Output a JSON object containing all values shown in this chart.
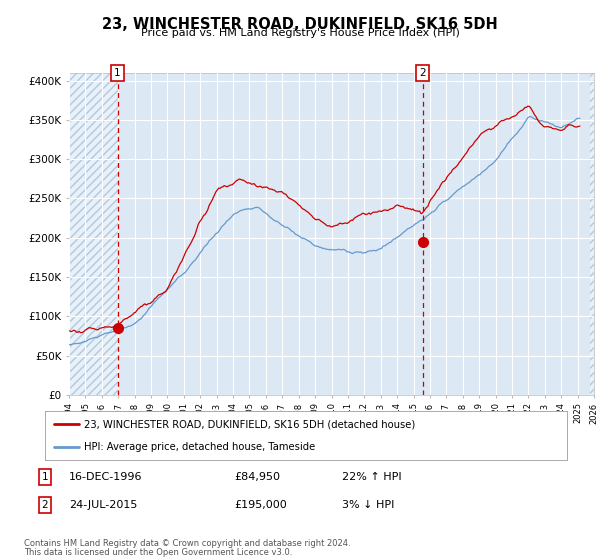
{
  "title": "23, WINCHESTER ROAD, DUKINFIELD, SK16 5DH",
  "subtitle": "Price paid vs. HM Land Registry's House Price Index (HPI)",
  "red_label": "23, WINCHESTER ROAD, DUKINFIELD, SK16 5DH (detached house)",
  "blue_label": "HPI: Average price, detached house, Tameside",
  "transaction1_date": "16-DEC-1996",
  "transaction1_price": 84950,
  "transaction1_hpi": "22% ↑ HPI",
  "transaction2_date": "24-JUL-2015",
  "transaction2_price": 195000,
  "transaction2_hpi": "3% ↓ HPI",
  "footer": "Contains HM Land Registry data © Crown copyright and database right 2024.\nThis data is licensed under the Open Government Licence v3.0.",
  "ylim": [
    0,
    410000
  ],
  "yticks": [
    0,
    50000,
    100000,
    150000,
    200000,
    250000,
    300000,
    350000,
    400000
  ],
  "plot_bg_color": "#dce9f5",
  "hatch_color": "#b0c8e0",
  "red_line_color": "#cc0000",
  "blue_line_color": "#6699cc",
  "marker_color": "#cc0000",
  "dashed_color": "#cc0000",
  "box_color": "#cc0000",
  "grid_color": "#ffffff",
  "x_start_year": 1994,
  "x_end_year": 2025,
  "vline1_year": 1996.96,
  "vline2_year": 2015.55
}
